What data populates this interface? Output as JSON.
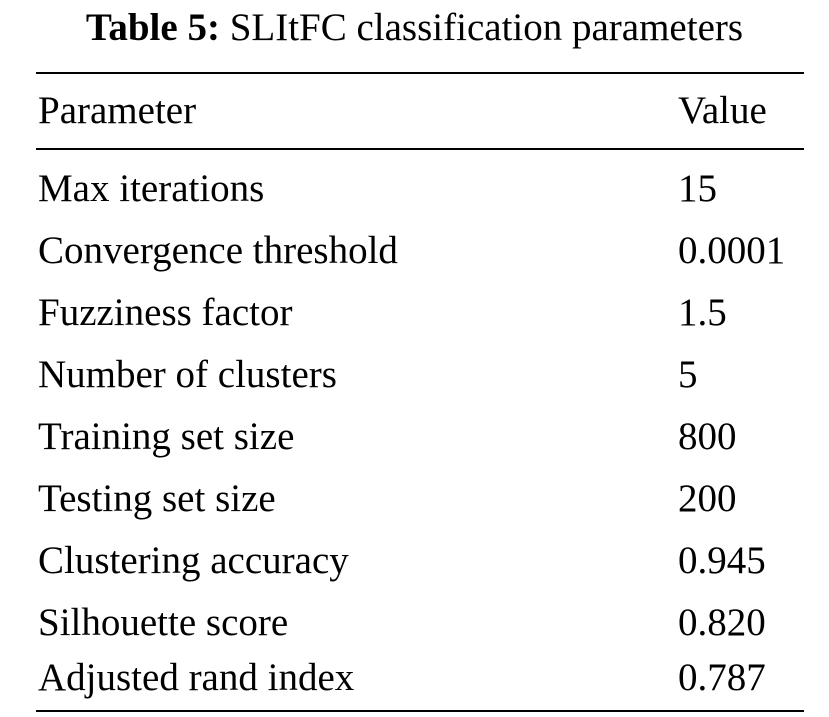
{
  "table": {
    "caption_label": "Table 5:",
    "caption_text": "SLItFC classification parameters",
    "headers": {
      "parameter": "Parameter",
      "value": "Value"
    },
    "rows": [
      {
        "parameter": "Max iterations",
        "value": "15"
      },
      {
        "parameter": "Convergence threshold",
        "value": "0.0001"
      },
      {
        "parameter": "Fuzziness factor",
        "value": "1.5"
      },
      {
        "parameter": "Number of clusters",
        "value": "5"
      },
      {
        "parameter": "Training set size",
        "value": "800"
      },
      {
        "parameter": "Testing set size",
        "value": "200"
      },
      {
        "parameter": "Clustering accuracy",
        "value": "0.945"
      },
      {
        "parameter": "Silhouette score",
        "value": "0.820"
      },
      {
        "parameter": "Adjusted rand index",
        "value": "0.787"
      }
    ]
  }
}
